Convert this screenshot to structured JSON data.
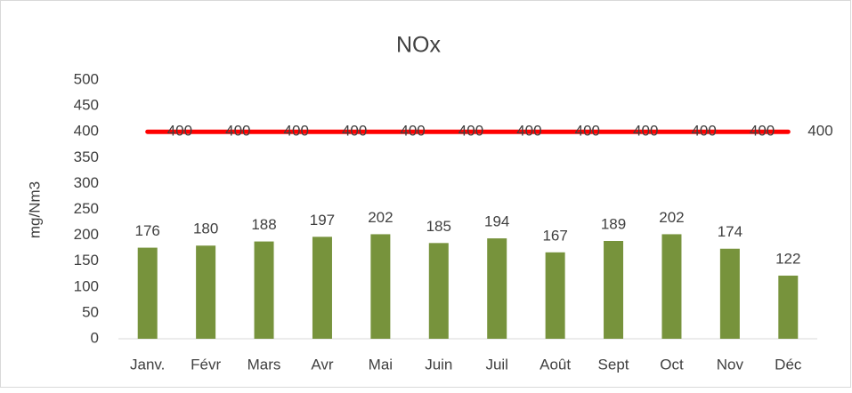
{
  "chart_data": {
    "type": "bar",
    "title": "NOx",
    "y_label": "mg/Nm3",
    "categories": [
      "Janv.",
      "Févr",
      "Mars",
      "Avr",
      "Mai",
      "Juin",
      "Juil",
      "Août",
      "Sept",
      "Oct",
      "Nov",
      "Déc"
    ],
    "series": [
      {
        "type": "bar",
        "color": "#77933c",
        "values": [
          176,
          180,
          188,
          197,
          202,
          185,
          194,
          167,
          189,
          202,
          174,
          122
        ]
      },
      {
        "type": "line",
        "color": "#ff0000",
        "values": [
          400,
          400,
          400,
          400,
          400,
          400,
          400,
          400,
          400,
          400,
          400,
          400
        ]
      }
    ],
    "ylim": [
      0,
      500
    ],
    "yticks": [
      0,
      50,
      100,
      150,
      200,
      250,
      300,
      350,
      400,
      450,
      500
    ],
    "grid": false
  }
}
